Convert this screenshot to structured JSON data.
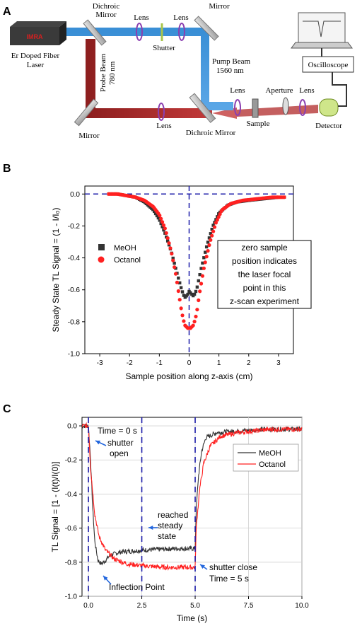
{
  "colors": {
    "pump_beam": "#3a8fd6",
    "probe_beam": "#b02a2a",
    "meoh": "#333333",
    "octanol": "#ff2020",
    "dashed": "#1a1aa8",
    "annotation_arrow": "#2266dd",
    "optic_purple": "#8b3fb0",
    "laser_red": "#d42020"
  },
  "panel_a": {
    "panel_label": "A",
    "laser_brand": "IMRA",
    "laser_label_1": "Er Doped Fiber",
    "laser_label_2": "Laser",
    "dichroic_top_1": "Dichroic",
    "dichroic_top_2": "Mirror",
    "lens_1": "Lens",
    "lens_2": "Lens",
    "shutter": "Shutter",
    "mirror_top_right": "Mirror",
    "probe_beam_1": "Probe Beam",
    "probe_beam_2": "780 nm",
    "pump_beam_1": "Pump Beam",
    "pump_beam_2": "1560 nm",
    "mirror_bottom_left": "Mirror",
    "lens_3": "Lens",
    "dichroic_bottom": "Dichroic Mirror",
    "lens_4": "Lens",
    "aperture": "Aperture",
    "lens_5": "Lens",
    "sample": "Sample",
    "detector": "Detector",
    "oscilloscope": "Oscilloscope"
  },
  "panel_b": {
    "panel_label": "B",
    "annotation": [
      "zero sample",
      "position indicates",
      "the laser focal",
      "point in this",
      "z-scan experiment"
    ]
  },
  "panel_c": {
    "panel_label": "C",
    "annotations": {
      "time0": "Time = 0 s",
      "shutter_open_1": "shutter",
      "shutter_open_2": "open",
      "steady_1": "reached",
      "steady_2": "steady",
      "steady_3": "state",
      "inflection": "Inflection Point",
      "shutter_close": "shutter close",
      "time5": "Time = 5 s"
    }
  },
  "chart_data": [
    {
      "type": "scatter",
      "panel": "B",
      "xlabel": "Sample position along z-axis (cm)",
      "ylabel": "Steady State TL Signal = (1 - I/I₀)",
      "xlim": [
        -3.5,
        3.5
      ],
      "ylim": [
        -1.0,
        0.05
      ],
      "xticks": [
        "-3",
        "-2",
        "-1",
        "0",
        "1",
        "2",
        "3"
      ],
      "yticks": [
        "0.0",
        "-0.2",
        "-0.4",
        "-0.6",
        "-0.8",
        "-1.0"
      ],
      "legend_position": "left-middle",
      "grid": false,
      "series": [
        {
          "name": "MeOH",
          "marker": "square",
          "points": [
            [
              -2.7,
              0.0
            ],
            [
              -2.4,
              0.0
            ],
            [
              -2.1,
              -0.01
            ],
            [
              -1.8,
              -0.02
            ],
            [
              -1.5,
              -0.05
            ],
            [
              -1.2,
              -0.1
            ],
            [
              -1.0,
              -0.16
            ],
            [
              -0.8,
              -0.25
            ],
            [
              -0.6,
              -0.36
            ],
            [
              -0.4,
              -0.5
            ],
            [
              -0.25,
              -0.6
            ],
            [
              -0.15,
              -0.65
            ],
            [
              -0.05,
              -0.63
            ],
            [
              0.0,
              -0.61
            ],
            [
              0.05,
              -0.62
            ],
            [
              0.15,
              -0.64
            ],
            [
              0.25,
              -0.6
            ],
            [
              0.4,
              -0.47
            ],
            [
              0.6,
              -0.32
            ],
            [
              0.8,
              -0.2
            ],
            [
              1.0,
              -0.12
            ],
            [
              1.3,
              -0.07
            ],
            [
              1.6,
              -0.05
            ],
            [
              2.0,
              -0.04
            ],
            [
              2.5,
              -0.03
            ],
            [
              3.0,
              -0.02
            ],
            [
              3.2,
              -0.02
            ]
          ]
        },
        {
          "name": "Octanol",
          "marker": "circle",
          "points": [
            [
              -2.7,
              0.0
            ],
            [
              -2.4,
              0.0
            ],
            [
              -2.1,
              -0.01
            ],
            [
              -1.8,
              -0.02
            ],
            [
              -1.5,
              -0.04
            ],
            [
              -1.2,
              -0.08
            ],
            [
              -1.0,
              -0.13
            ],
            [
              -0.8,
              -0.22
            ],
            [
              -0.6,
              -0.36
            ],
            [
              -0.45,
              -0.5
            ],
            [
              -0.35,
              -0.62
            ],
            [
              -0.25,
              -0.74
            ],
            [
              -0.15,
              -0.82
            ],
            [
              -0.05,
              -0.84
            ],
            [
              0.05,
              -0.84
            ],
            [
              0.15,
              -0.82
            ],
            [
              0.25,
              -0.75
            ],
            [
              0.35,
              -0.62
            ],
            [
              0.5,
              -0.46
            ],
            [
              0.7,
              -0.3
            ],
            [
              0.9,
              -0.18
            ],
            [
              1.1,
              -0.1
            ],
            [
              1.4,
              -0.06
            ],
            [
              1.8,
              -0.04
            ],
            [
              2.3,
              -0.03
            ],
            [
              2.8,
              -0.02
            ],
            [
              3.2,
              -0.02
            ]
          ]
        }
      ]
    },
    {
      "type": "line",
      "panel": "C",
      "xlabel": "Time (s)",
      "ylabel": "TL Signal = [1 - (I(t)/I(0)]",
      "xlim": [
        -0.3,
        10.0
      ],
      "ylim": [
        -1.0,
        0.05
      ],
      "xticks": [
        "0.0",
        "2.5",
        "5.0",
        "7.5",
        "10.0"
      ],
      "yticks": [
        "0.0",
        "-0.2",
        "-0.4",
        "-0.6",
        "-0.8",
        "-1.0"
      ],
      "legend_position": "top-right",
      "grid": true,
      "vertical_markers": [
        0.0,
        2.5,
        5.0
      ],
      "series": [
        {
          "name": "MeOH",
          "points": [
            [
              -0.3,
              0.0
            ],
            [
              0.0,
              0.0
            ],
            [
              0.1,
              -0.2
            ],
            [
              0.2,
              -0.48
            ],
            [
              0.3,
              -0.68
            ],
            [
              0.45,
              -0.79
            ],
            [
              0.6,
              -0.81
            ],
            [
              0.8,
              -0.79
            ],
            [
              1.0,
              -0.76
            ],
            [
              1.5,
              -0.74
            ],
            [
              2.5,
              -0.73
            ],
            [
              4.0,
              -0.72
            ],
            [
              5.0,
              -0.72
            ],
            [
              5.05,
              -0.5
            ],
            [
              5.15,
              -0.3
            ],
            [
              5.3,
              -0.15
            ],
            [
              5.5,
              -0.07
            ],
            [
              6.0,
              -0.04
            ],
            [
              7.0,
              -0.03
            ],
            [
              8.5,
              -0.02
            ],
            [
              10.0,
              -0.02
            ]
          ]
        },
        {
          "name": "Octanol",
          "points": [
            [
              -0.3,
              0.0
            ],
            [
              0.0,
              0.0
            ],
            [
              0.1,
              -0.25
            ],
            [
              0.3,
              -0.52
            ],
            [
              0.5,
              -0.65
            ],
            [
              0.8,
              -0.73
            ],
            [
              1.2,
              -0.78
            ],
            [
              1.8,
              -0.81
            ],
            [
              2.5,
              -0.82
            ],
            [
              3.5,
              -0.83
            ],
            [
              5.0,
              -0.83
            ],
            [
              5.05,
              -0.6
            ],
            [
              5.2,
              -0.38
            ],
            [
              5.4,
              -0.22
            ],
            [
              5.7,
              -0.12
            ],
            [
              6.2,
              -0.06
            ],
            [
              7.0,
              -0.04
            ],
            [
              8.5,
              -0.02
            ],
            [
              10.0,
              -0.02
            ]
          ]
        }
      ]
    }
  ]
}
